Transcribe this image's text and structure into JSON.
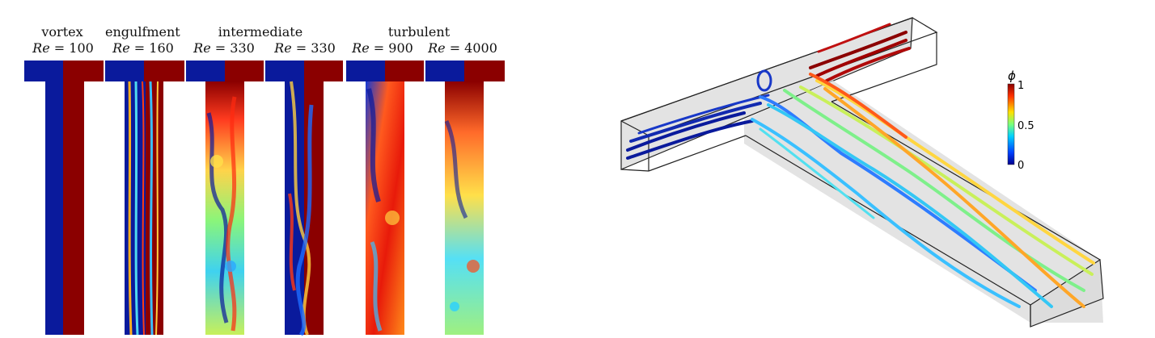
{
  "regimes": {
    "vortex": "vortex",
    "engulfment": "engulfment",
    "intermediate": "intermediate",
    "turbulent": "turbulent"
  },
  "re_symbol": "Re",
  "cases": [
    {
      "re": "= 100"
    },
    {
      "re": "= 160"
    },
    {
      "re": "= 330"
    },
    {
      "re": "= 330"
    },
    {
      "re": "= 900"
    },
    {
      "re": "= 4000"
    }
  ],
  "colorbar": {
    "label": "ϕ",
    "ticks": [
      "1",
      "0.5",
      "0"
    ]
  },
  "colors": {
    "low": "#00008f",
    "high": "#8b0000",
    "mid": "#9aff5f"
  }
}
